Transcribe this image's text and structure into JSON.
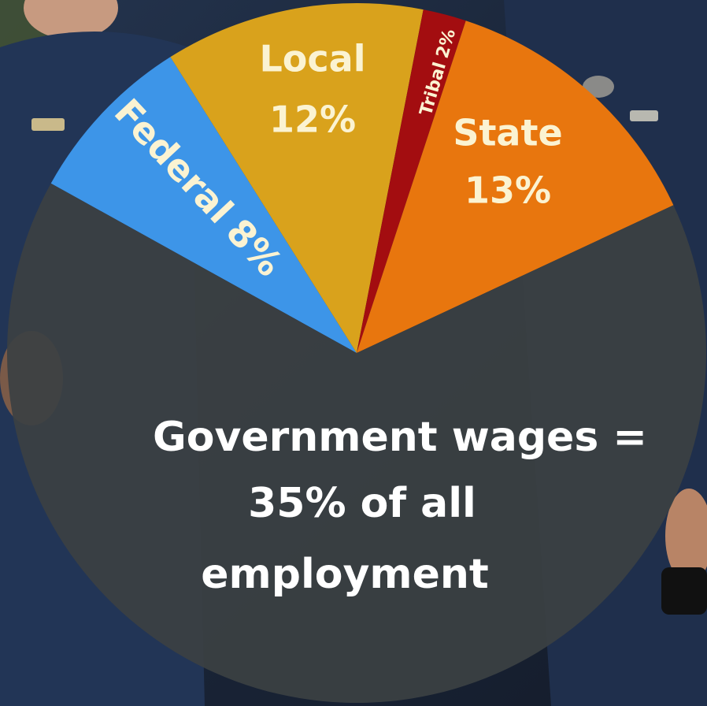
{
  "chart_data": {
    "type": "pie",
    "categories": [
      "Federal",
      "Local",
      "Tribal",
      "State",
      null
    ],
    "values": [
      8,
      12,
      2,
      13,
      65
    ],
    "value_labels": [
      "8%",
      "12%",
      "2%",
      "13%",
      null
    ],
    "colors": [
      "#3d95e8",
      "#d9a21c",
      "#a30d10",
      "#e8760e",
      "#3b4143"
    ],
    "annotation": [
      "Government wages =",
      "35% of all",
      "employment"
    ]
  }
}
